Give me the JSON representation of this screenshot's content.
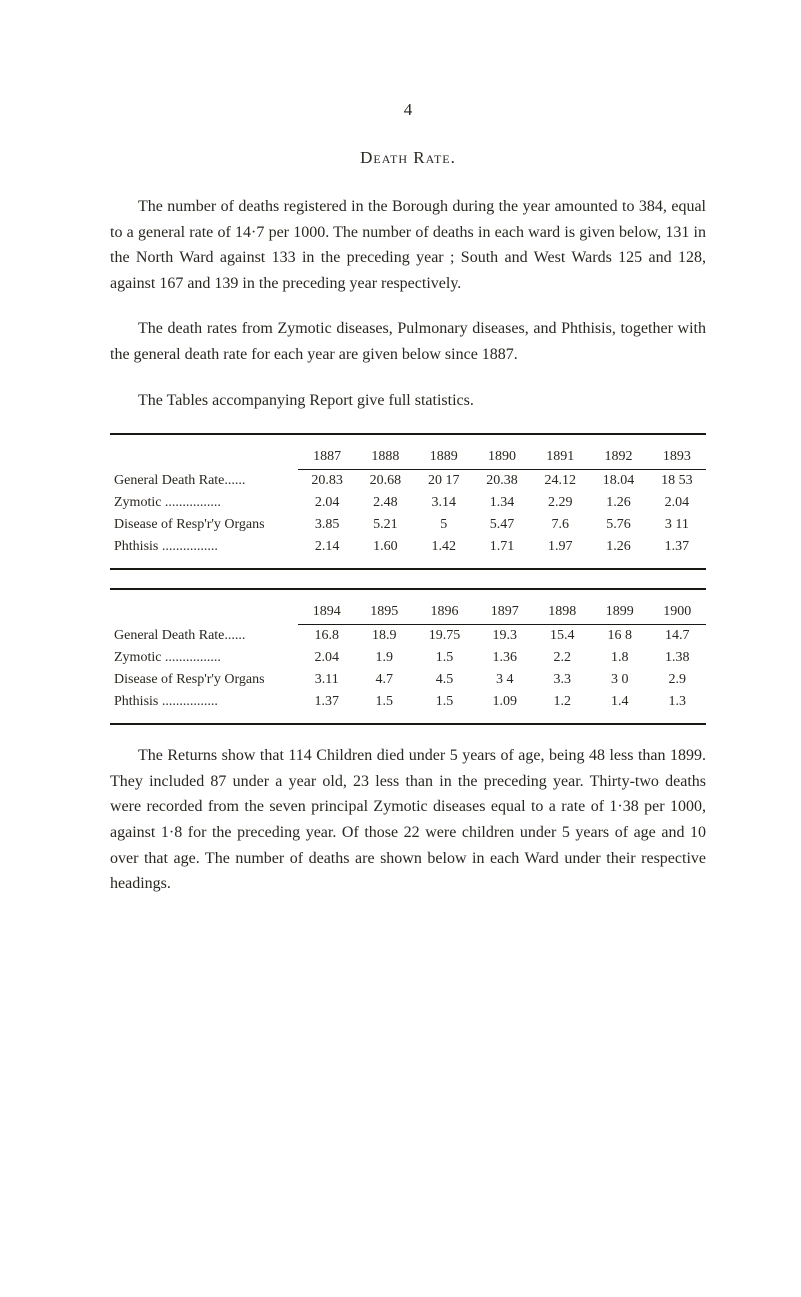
{
  "pageNumber": "4",
  "sectionTitle": "Death Rate.",
  "para1": "The number of deaths registered in the Borough during the year amounted to 384, equal to a general rate of 14·7 per 1000. The number of deaths in each ward is given below, 131 in the North Ward against 133 in the preceding year ; South and West Wards 125 and 128, against 167 and 139 in the preceding year respectively.",
  "para2": "The death rates from Zymotic diseases, Pulmonary diseases, and Phthisis, together with the general death rate for each year are given below since 1887.",
  "para3": "The Tables accompanying Report give full statistics.",
  "table1": {
    "years": [
      "1887",
      "1888",
      "1889",
      "1890",
      "1891",
      "1892",
      "1893"
    ],
    "rows": [
      {
        "label": "General Death Rate......",
        "values": [
          "20.83",
          "20.68",
          "20 17",
          "20.38",
          "24.12",
          "18.04",
          "18 53"
        ]
      },
      {
        "label": "Zymotic ................",
        "values": [
          "2.04",
          "2.48",
          "3.14",
          "1.34",
          "2.29",
          "1.26",
          "2.04"
        ]
      },
      {
        "label": "Disease of Resp'r'y Organs",
        "values": [
          "3.85",
          "5.21",
          "5",
          "5.47",
          "7.6",
          "5.76",
          "3 11"
        ]
      },
      {
        "label": "Phthisis ................",
        "values": [
          "2.14",
          "1.60",
          "1.42",
          "1.71",
          "1.97",
          "1.26",
          "1.37"
        ]
      }
    ]
  },
  "table2": {
    "years": [
      "1894",
      "1895",
      "1896",
      "1897",
      "1898",
      "1899",
      "1900"
    ],
    "rows": [
      {
        "label": "General Death Rate......",
        "values": [
          "16.8",
          "18.9",
          "19.75",
          "19.3",
          "15.4",
          "16 8",
          "14.7"
        ]
      },
      {
        "label": "Zymotic ................",
        "values": [
          "2.04",
          "1.9",
          "1.5",
          "1.36",
          "2.2",
          "1.8",
          "1.38"
        ]
      },
      {
        "label": "Disease of Resp'r'y Organs",
        "values": [
          "3.11",
          "4.7",
          "4.5",
          "3 4",
          "3.3",
          "3 0",
          "2.9"
        ]
      },
      {
        "label": "Phthisis ................",
        "values": [
          "1.37",
          "1.5",
          "1.5",
          "1.09",
          "1.2",
          "1.4",
          "1.3"
        ]
      }
    ]
  },
  "para4": "The Returns show that 114 Children died under 5 years of age, being 48 less than 1899. They included 87 under a year old, 23 less than in the preceding year. Thirty-two deaths were recorded from the seven principal Zymotic diseases equal to a rate of 1·38 per 1000, against 1·8 for the preceding year. Of those 22 were children under 5 years of age and 10 over that age. The number of deaths are shown below in each Ward under their respective headings."
}
